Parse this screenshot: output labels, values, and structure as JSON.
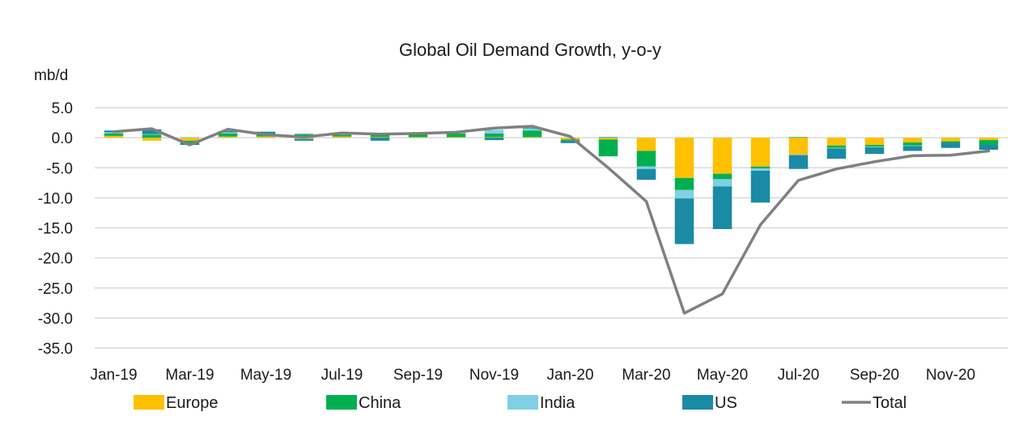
{
  "chart_data": {
    "type": "bar",
    "stacked": true,
    "title": "Global Oil Demand Growth, y-o-y",
    "unit_label": "mb/d",
    "xlabel": "",
    "ylabel": "",
    "ylim": [
      -35,
      5
    ],
    "yticks": [
      5,
      0,
      -5,
      -10,
      -15,
      -20,
      -25,
      -30,
      -35
    ],
    "ytick_labels": [
      "5.0",
      "0.0",
      "-5.0",
      "-10.0",
      "-15.0",
      "-20.0",
      "-25.0",
      "-30.0",
      "-35.0"
    ],
    "grid": true,
    "legend_position": "bottom",
    "categories": [
      "Jan-19",
      "Feb-19",
      "Mar-19",
      "Apr-19",
      "May-19",
      "Jun-19",
      "Jul-19",
      "Aug-19",
      "Sep-19",
      "Oct-19",
      "Nov-19",
      "Dec-19",
      "Jan-20",
      "Feb-20",
      "Mar-20",
      "Apr-20",
      "May-20",
      "Jun-20",
      "Jul-20",
      "Aug-20",
      "Sep-20",
      "Oct-20",
      "Nov-20",
      "Dec-20"
    ],
    "x_tick_labels": [
      "Jan-19",
      "Mar-19",
      "May-19",
      "Jul-19",
      "Sep-19",
      "Nov-19",
      "Jan-20",
      "Mar-20",
      "May-20",
      "Jul-20",
      "Sep-20",
      "Nov-20"
    ],
    "x_tick_indices": [
      0,
      2,
      4,
      6,
      8,
      10,
      12,
      14,
      16,
      18,
      20,
      22
    ],
    "series": [
      {
        "name": "Europe",
        "color": "#ffc000",
        "values": [
          0.3,
          -0.5,
          -0.5,
          0.2,
          0.2,
          -0.2,
          0.2,
          0.1,
          0.1,
          0.1,
          0.1,
          0.1,
          -0.3,
          -0.3,
          -2.2,
          -6.7,
          -6.0,
          -4.8,
          -2.8,
          -1.3,
          -1.2,
          -0.8,
          -0.6,
          -0.4
        ]
      },
      {
        "name": "China",
        "color": "#00b050",
        "values": [
          0.4,
          0.5,
          -0.3,
          0.5,
          0.3,
          0.6,
          0.3,
          0.4,
          0.6,
          0.6,
          0.6,
          1.1,
          -0.2,
          -2.8,
          -2.6,
          -2.0,
          -0.9,
          -0.3,
          0.1,
          -0.4,
          -0.3,
          -0.5,
          -0.2,
          -0.8
        ]
      },
      {
        "name": "India",
        "color": "#7fd0e3",
        "values": [
          0.2,
          0.1,
          0.1,
          0.2,
          0.1,
          0.1,
          0.1,
          0.1,
          0.1,
          0.1,
          0.6,
          0.3,
          0.0,
          0.0,
          -0.4,
          -1.4,
          -1.2,
          -0.4,
          -0.1,
          -0.1,
          -0.1,
          -0.1,
          0.0,
          0.0
        ]
      },
      {
        "name": "US",
        "color": "#1a8aa5",
        "values": [
          0.3,
          0.8,
          -0.4,
          0.2,
          0.4,
          -0.3,
          0.1,
          -0.5,
          0.0,
          0.1,
          -0.4,
          0.1,
          -0.4,
          0.1,
          -1.8,
          -7.6,
          -7.1,
          -5.3,
          -2.3,
          -1.7,
          -1.1,
          -0.8,
          -0.9,
          -0.8
        ]
      },
      {
        "name": "Total",
        "color": "#808080",
        "type": "line",
        "values": [
          1.0,
          1.5,
          -1.2,
          1.4,
          0.5,
          0.1,
          0.8,
          0.6,
          0.7,
          0.9,
          1.6,
          1.9,
          0.2,
          -5.0,
          -10.6,
          -29.2,
          -26.0,
          -14.5,
          -7.1,
          -5.2,
          -4.0,
          -3.0,
          -2.9,
          -2.2
        ]
      }
    ]
  }
}
